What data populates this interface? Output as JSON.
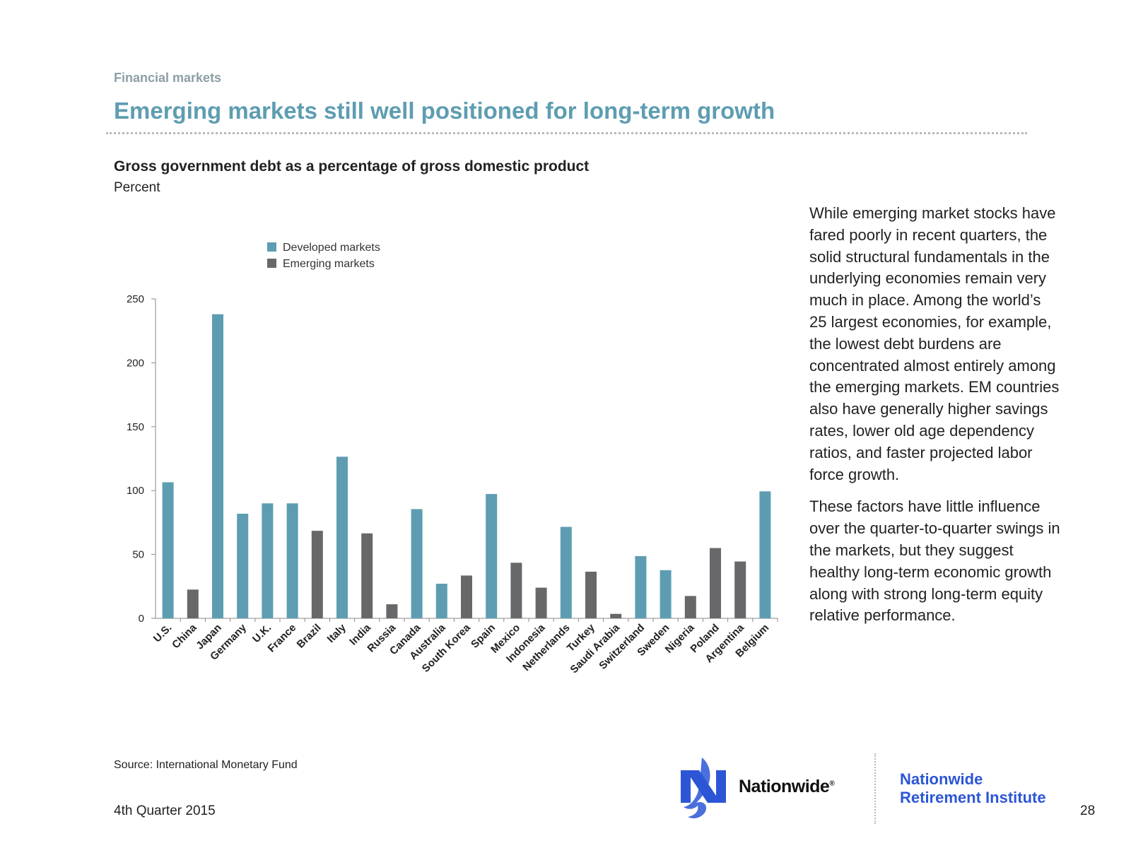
{
  "header": {
    "section": "Financial markets",
    "title": "Emerging markets still well positioned for long-term growth"
  },
  "chart_header": {
    "title": "Gross government debt as a percentage of gross domestic product",
    "unit": "Percent"
  },
  "chart_data": {
    "type": "bar",
    "title": "Gross government debt as a percentage of gross domestic product",
    "ylabel": "Percent",
    "xlabel": "",
    "ylim": [
      0,
      250
    ],
    "yticks": [
      0,
      50,
      100,
      150,
      200,
      250
    ],
    "grid": false,
    "legend_position": "top-left",
    "legend": [
      {
        "name": "Developed markets",
        "color": "#5e9db1"
      },
      {
        "name": "Emerging markets",
        "color": "#68686a"
      }
    ],
    "categories": [
      "U.S.",
      "China",
      "Japan",
      "Germany",
      "U.K.",
      "France",
      "Brazil",
      "Italy",
      "India",
      "Russia",
      "Canada",
      "Australia",
      "South Korea",
      "Spain",
      "Mexico",
      "Indonesia",
      "Netherlands",
      "Turkey",
      "Saudi Arabia",
      "Switzerland",
      "Sweden",
      "Nigeria",
      "Poland",
      "Argentina",
      "Belgium"
    ],
    "values": [
      106.5,
      22.5,
      238,
      81.9,
      90,
      90,
      68.5,
      126.5,
      66.5,
      11,
      85.5,
      27.1,
      33.5,
      97.3,
      43.5,
      24,
      71.6,
      36.5,
      3.5,
      48.7,
      37.7,
      17.5,
      55,
      44.5,
      99.4
    ],
    "market": [
      "Developed markets",
      "Emerging markets",
      "Developed markets",
      "Developed markets",
      "Developed markets",
      "Developed markets",
      "Emerging markets",
      "Developed markets",
      "Emerging markets",
      "Emerging markets",
      "Developed markets",
      "Developed markets",
      "Emerging markets",
      "Developed markets",
      "Emerging markets",
      "Emerging markets",
      "Developed markets",
      "Emerging markets",
      "Emerging markets",
      "Developed markets",
      "Developed markets",
      "Emerging markets",
      "Emerging markets",
      "Emerging markets",
      "Developed markets"
    ]
  },
  "body": {
    "paragraph1": "While emerging market stocks have fared poorly in recent quarters, the solid structural fundamentals in the underlying economies remain very much in place. Among the world’s 25 largest economies, for example, the lowest debt burdens are concentrated almost entirely among the emerging markets. EM countries also have generally higher savings rates, lower old age dependency ratios, and faster projected labor force growth.",
    "paragraph2": "These factors have little influence over the quarter-to-quarter swings in the markets, but they suggest healthy long-term economic growth along with strong long-term equity relative performance."
  },
  "footer": {
    "source": "Source: International Monetary Fund",
    "date": "4th Quarter 2015",
    "brand": "Nationwide",
    "brand_mark": "®",
    "institute_line1": "Nationwide",
    "institute_line2": "Retirement Institute",
    "page_number": "28",
    "logo_icon": "eagle-icon",
    "logo_color": "#2c56d6"
  }
}
